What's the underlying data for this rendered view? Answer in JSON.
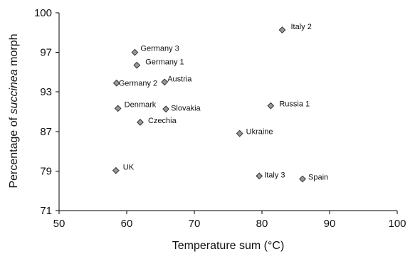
{
  "chart_data": {
    "type": "scatter",
    "title": "",
    "xlabel": "Temperature sum (°C)",
    "ylabel_parts": [
      "Percentage of ",
      "succinea",
      " morph"
    ],
    "xlim": [
      50,
      100
    ],
    "ylim": [
      71,
      100
    ],
    "xticks": [
      50,
      60,
      70,
      80,
      90,
      100
    ],
    "yticks": [
      71,
      79,
      87,
      93,
      97,
      100
    ],
    "grid": false,
    "marker_color": "#999999",
    "points": [
      {
        "label": "Italy 2",
        "x": 83,
        "y": 98.7
      },
      {
        "label": "Germany 3",
        "x": 61.2,
        "y": 97
      },
      {
        "label": "Germany 1",
        "x": 61.5,
        "y": 95.7
      },
      {
        "label": "Germany 2",
        "x": 58.5,
        "y": 93.9
      },
      {
        "label": "Austria",
        "x": 65.6,
        "y": 94
      },
      {
        "label": "Denmark",
        "x": 58.7,
        "y": 90.5
      },
      {
        "label": "Slovakia",
        "x": 65.8,
        "y": 90.4
      },
      {
        "label": "Russia 1",
        "x": 81.3,
        "y": 90.9
      },
      {
        "label": "Czechia",
        "x": 62,
        "y": 88.4
      },
      {
        "label": "Ukraine",
        "x": 76.7,
        "y": 86.6
      },
      {
        "label": "UK",
        "x": 58.4,
        "y": 79.1
      },
      {
        "label": "Italy 3",
        "x": 79.6,
        "y": 78
      },
      {
        "label": "Spain",
        "x": 86,
        "y": 77.4
      }
    ]
  }
}
